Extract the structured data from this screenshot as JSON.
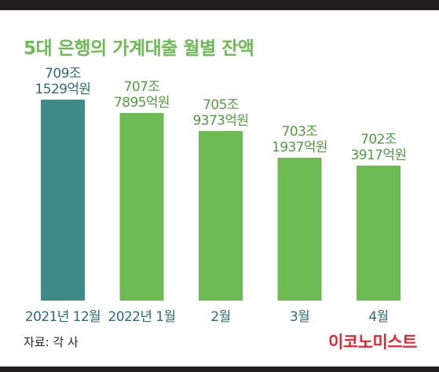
{
  "colors": {
    "highlight_bar": "#3e8a87",
    "bar": "#6cbb53",
    "highlight_label": "#2a6e72",
    "label": "#4f9e3d",
    "title": "#6cbb53",
    "brand": "#e4262f"
  },
  "source": "자료: 각 사",
  "brand": "이코노미스트",
  "chart_data": {
    "type": "bar",
    "title": "5대 은행의 가계대출 월별 잔액",
    "xlabel": "",
    "ylabel": "",
    "grid": false,
    "legend": "none",
    "categories": [
      "2021년 12월",
      "2022년 1월",
      "2월",
      "3월",
      "4월"
    ],
    "values_text": [
      [
        "709조",
        "1529억원"
      ],
      [
        "707조",
        "7895억원"
      ],
      [
        "705조",
        "9373억원"
      ],
      [
        "703조",
        "1937억원"
      ],
      [
        "702조",
        "3917억원"
      ]
    ],
    "values": [
      7091529,
      7077895,
      7059373,
      7031937,
      7023917
    ],
    "value_unit": "억원",
    "highlight_index": 0,
    "ylim": [
      7000000,
      7100000
    ]
  }
}
